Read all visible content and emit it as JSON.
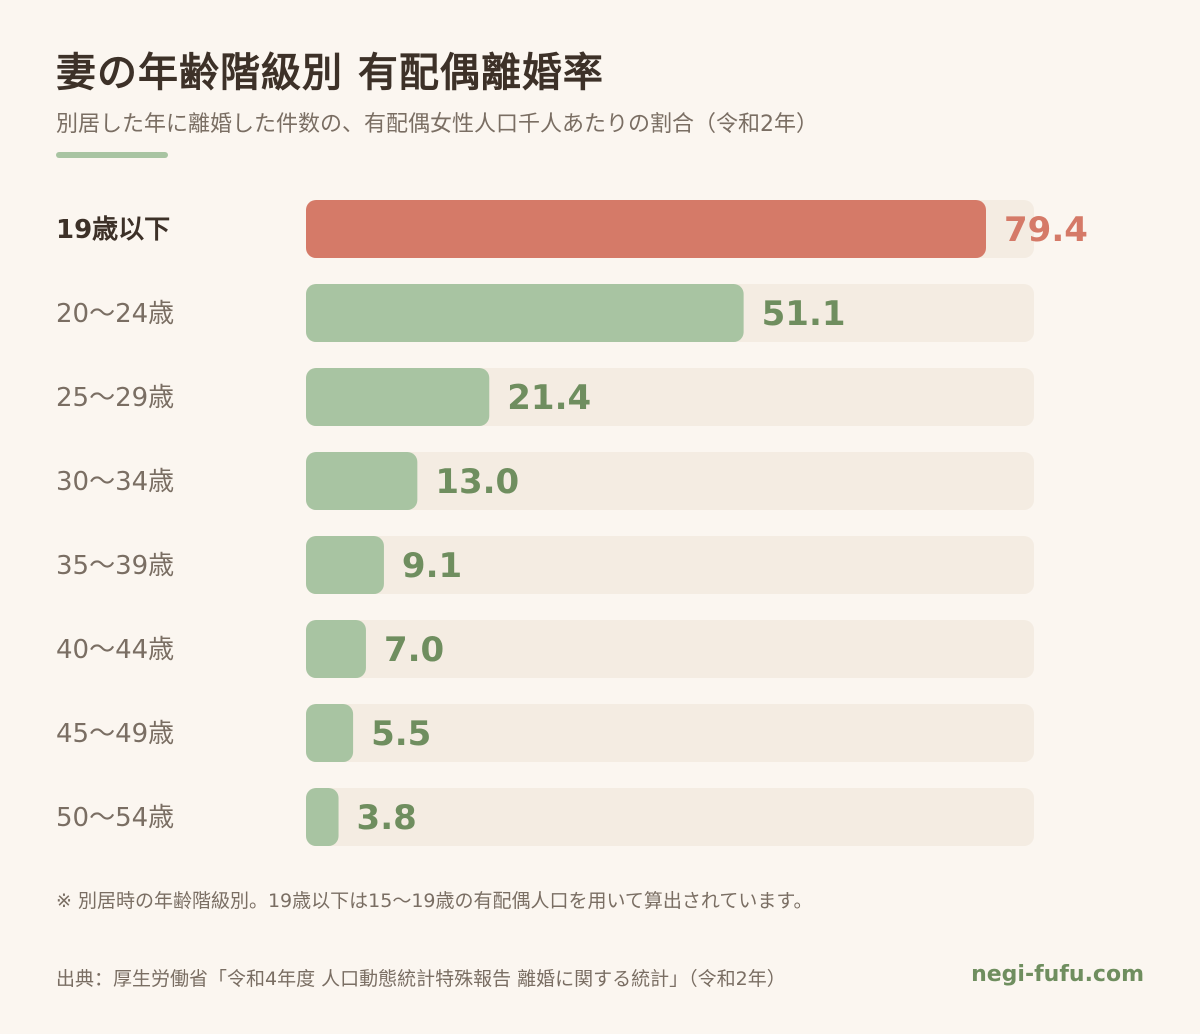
{
  "title": "妻の年齢階級別 有配偶離婚率",
  "subtitle": "別居した年に離婚した件数の、有配偶女性人口千人あたりの割合（令和2年）",
  "note": "※ 別居時の年齢階級別。19歳以下は15〜19歳の有配偶人口を用いて算出されています。",
  "source": "出典：厚生労働省「令和4年度 人口動態統計特殊報告 離婚に関する統計」（令和2年）",
  "site": "negi-fufu.com",
  "colors": {
    "highlight": "#d57a68",
    "bar": "#a8c4a2",
    "track": "#f4ece2",
    "value_green": "#6f8e5f",
    "accent_rule": "#a8c4a2"
  },
  "chart_data": {
    "type": "bar",
    "orientation": "horizontal",
    "categories": [
      "19歳以下",
      "20〜24歳",
      "25〜29歳",
      "30〜34歳",
      "35〜39歳",
      "40〜44歳",
      "45〜49歳",
      "50〜54歳"
    ],
    "values": [
      79.4,
      51.1,
      21.4,
      13.0,
      9.1,
      7.0,
      5.5,
      3.8
    ],
    "value_labels": [
      "79.4",
      "51.1",
      "21.4",
      "13.0",
      "9.1",
      "7.0",
      "5.5",
      "3.8"
    ],
    "highlight_index": 0,
    "xlim": [
      0,
      85
    ],
    "grid": false,
    "legend": "none"
  }
}
